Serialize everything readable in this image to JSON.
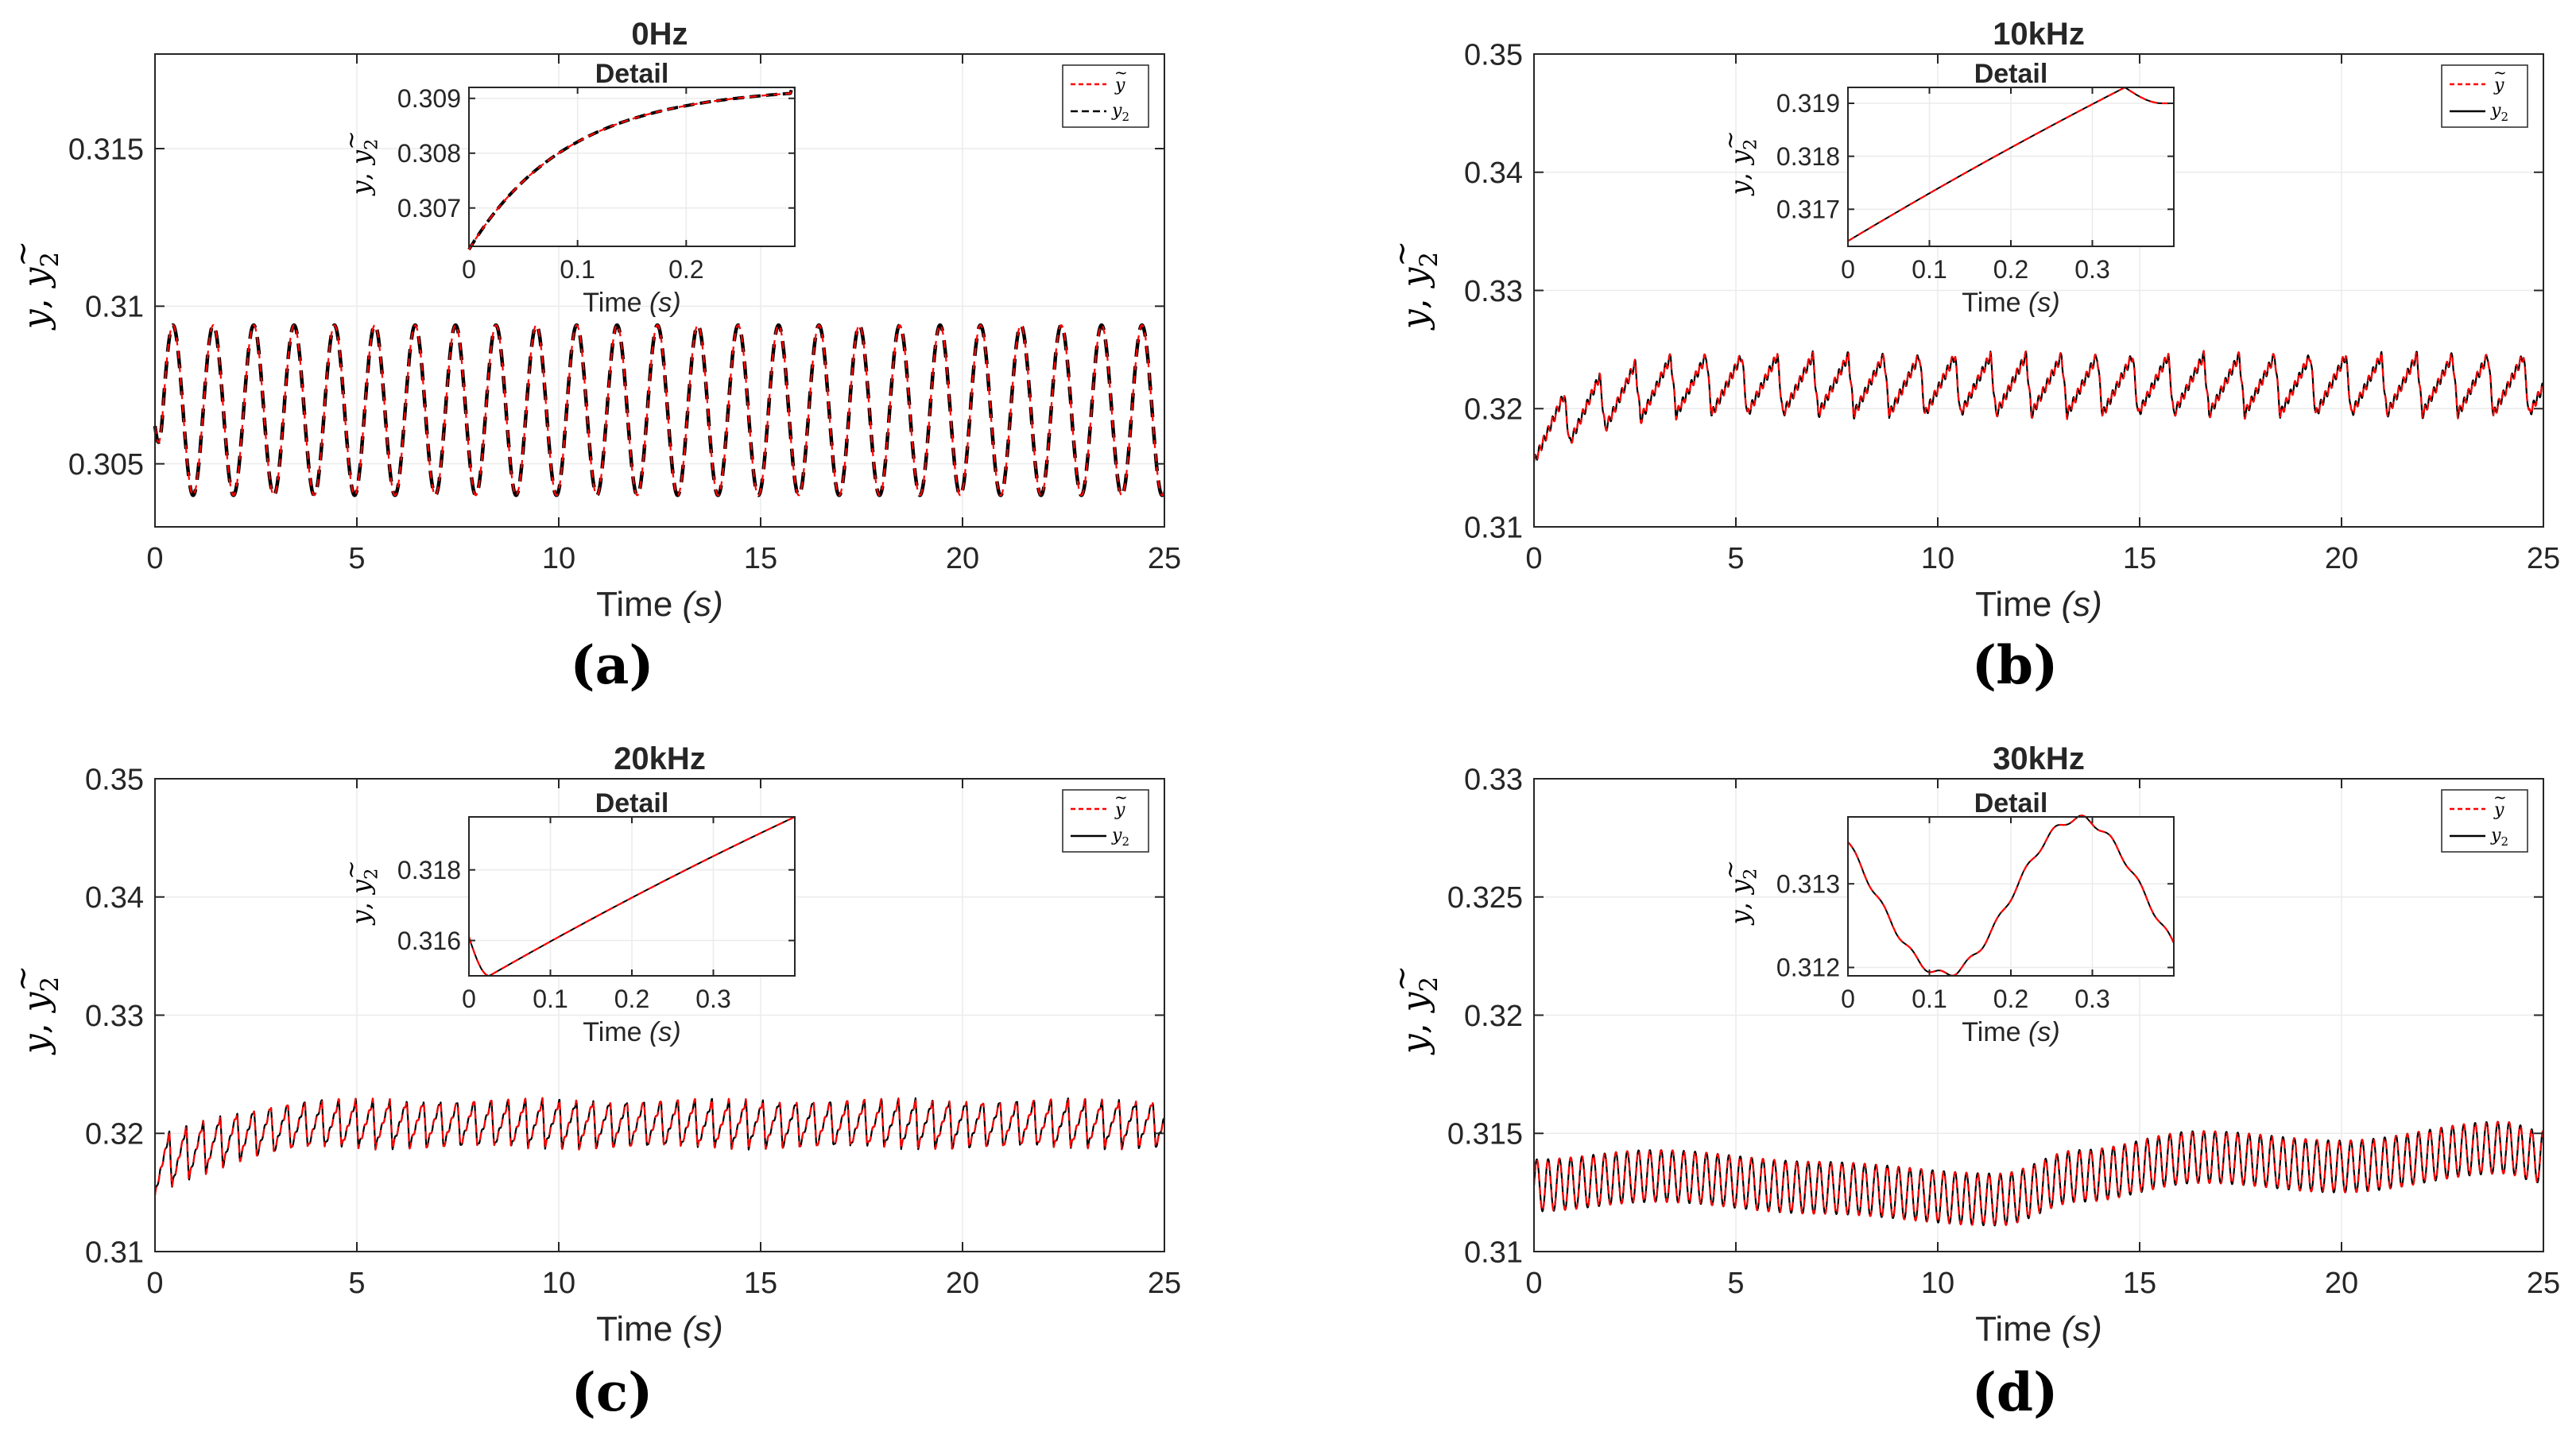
{
  "legend_labels": {
    "tilde": "~",
    "y_tilde": "y",
    "y2": "y",
    "y2_sub": "2"
  },
  "ylabel_text": {
    "tilde": "~",
    "y": "y",
    "comma": ",",
    "y2": "y",
    "sub": "2"
  },
  "xlabel_text": {
    "main": "Time ",
    "unit": "(s)"
  },
  "inset_title": "Detail",
  "colors": {
    "y_tilde": "#ff0000",
    "y2": "#000000",
    "axis": "#262626",
    "grid": "#ebebeb"
  },
  "chart_data": [
    {
      "id": "a",
      "type": "line",
      "title": "0Hz",
      "sublabel": "(a)",
      "xlabel": "Time (s)",
      "ylabel": "ỹ, y2",
      "xlim": [
        0,
        25
      ],
      "ylim": [
        0.303,
        0.318
      ],
      "xticks": [
        0,
        5,
        10,
        15,
        20,
        25
      ],
      "yticks": [
        0.305,
        0.31,
        0.315
      ],
      "ytick_labels": [
        "0.305",
        "0.31",
        "0.315"
      ],
      "grid": true,
      "legend": "top-right",
      "series": [
        {
          "name": "ỹ",
          "style": "dash",
          "color": "#ff0000"
        },
        {
          "name": "y2",
          "style": "dash",
          "color": "#000000"
        }
      ],
      "signal": {
        "kind": "sine",
        "period": 1.0,
        "mean": 0.3067,
        "amplitude": 0.0027,
        "start": 0.3062,
        "phase_shift": 0.05
      },
      "inset": {
        "title": "Detail",
        "xlabel": "Time (s)",
        "ylabel": "ỹ, y2",
        "xlim": [
          0,
          0.3
        ],
        "ylim": [
          0.3063,
          0.3092
        ],
        "xticks": [
          0,
          0.1,
          0.2
        ],
        "xtick_labels": [
          "0",
          "0.1",
          "0.2"
        ],
        "yticks": [
          0.307,
          0.308,
          0.309
        ],
        "ytick_labels": [
          "0.307",
          "0.308",
          "0.309"
        ],
        "curve": {
          "kind": "saturating",
          "y0": 0.3063,
          "y1": 0.3092,
          "tau": 0.09
        }
      }
    },
    {
      "id": "b",
      "type": "line",
      "title": "10kHz",
      "sublabel": "(b)",
      "xlabel": "Time (s)",
      "ylabel": "ỹ, y2",
      "xlim": [
        0,
        25
      ],
      "ylim": [
        0.31,
        0.35
      ],
      "xticks": [
        0,
        5,
        10,
        15,
        20,
        25
      ],
      "yticks": [
        0.31,
        0.32,
        0.33,
        0.34,
        0.35
      ],
      "ytick_labels": [
        "0.31",
        "0.32",
        "0.33",
        "0.34",
        "0.35"
      ],
      "grid": true,
      "legend": "top-right",
      "series": [
        {
          "name": "ỹ",
          "style": "dash",
          "color": "#ff0000"
        },
        {
          "name": "y2",
          "style": "solid",
          "color": "#000000"
        }
      ],
      "signal": {
        "kind": "sawtooth",
        "period": 0.88,
        "low_start": 0.3155,
        "low_end": 0.3195,
        "high_start": 0.3195,
        "high_end": 0.3245,
        "settle": 4.0,
        "ripple": 0.0008
      },
      "inset": {
        "title": "Detail",
        "xlabel": "Time (s)",
        "ylabel": "ỹ, y2",
        "xlim": [
          0,
          0.4
        ],
        "ylim": [
          0.3163,
          0.3193
        ],
        "xticks": [
          0,
          0.1,
          0.2,
          0.3
        ],
        "xtick_labels": [
          "0",
          "0.1",
          "0.2",
          "0.3"
        ],
        "yticks": [
          0.317,
          0.318,
          0.319
        ],
        "ytick_labels": [
          "0.317",
          "0.318",
          "0.319"
        ],
        "curve": {
          "kind": "rise_peak",
          "y0": 0.3164,
          "peak": 0.3193,
          "t_peak": 0.34,
          "y_end": 0.319
        }
      }
    },
    {
      "id": "c",
      "type": "line",
      "title": "20kHz",
      "sublabel": "(c)",
      "xlabel": "Time (s)",
      "ylabel": "ỹ, y2",
      "xlim": [
        0,
        25
      ],
      "ylim": [
        0.31,
        0.35
      ],
      "xticks": [
        0,
        5,
        10,
        15,
        20,
        25
      ],
      "yticks": [
        0.31,
        0.32,
        0.33,
        0.34,
        0.35
      ],
      "ytick_labels": [
        "0.31",
        "0.32",
        "0.33",
        "0.34",
        "0.35"
      ],
      "grid": true,
      "legend": "top-right",
      "series": [
        {
          "name": "ỹ",
          "style": "dash",
          "color": "#ff0000"
        },
        {
          "name": "y2",
          "style": "solid",
          "color": "#000000"
        }
      ],
      "signal": {
        "kind": "sawtooth",
        "period": 0.42,
        "low_start": 0.3148,
        "low_end": 0.3188,
        "high_start": 0.3195,
        "high_end": 0.3228,
        "settle": 4.5,
        "ripple": 0.0004
      },
      "inset": {
        "title": "Detail",
        "xlabel": "Time (s)",
        "ylabel": "ỹ, y2",
        "xlim": [
          0,
          0.4
        ],
        "ylim": [
          0.315,
          0.3195
        ],
        "xticks": [
          0,
          0.1,
          0.2,
          0.3
        ],
        "xtick_labels": [
          "0",
          "0.1",
          "0.2",
          "0.3"
        ],
        "yticks": [
          0.316,
          0.318
        ],
        "ytick_labels": [
          "0.316",
          "0.318"
        ],
        "curve": {
          "kind": "dip_rise",
          "y_start": 0.3161,
          "y_min": 0.315,
          "t_min": 0.025,
          "y_end": 0.3195
        }
      }
    },
    {
      "id": "d",
      "type": "line",
      "title": "30kHz",
      "sublabel": "(d)",
      "xlabel": "Time (s)",
      "ylabel": "ỹ, y2",
      "xlim": [
        0,
        25
      ],
      "ylim": [
        0.31,
        0.33
      ],
      "xticks": [
        0,
        5,
        10,
        15,
        20,
        25
      ],
      "yticks": [
        0.31,
        0.315,
        0.32,
        0.325,
        0.33
      ],
      "ytick_labels": [
        "0.31",
        "0.315",
        "0.32",
        "0.325",
        "0.33"
      ],
      "grid": true,
      "legend": "top-right",
      "series": [
        {
          "name": "ỹ",
          "style": "dash",
          "color": "#ff0000"
        },
        {
          "name": "y2",
          "style": "solid",
          "color": "#000000"
        }
      ],
      "signal": {
        "kind": "modulated",
        "period": 0.28,
        "amplitude": 0.0011,
        "envelope": [
          [
            0,
            0.3128
          ],
          [
            3,
            0.3132
          ],
          [
            7,
            0.3127
          ],
          [
            11.5,
            0.3122
          ],
          [
            13.5,
            0.3132
          ],
          [
            16.5,
            0.314
          ],
          [
            20,
            0.3136
          ],
          [
            24,
            0.3144
          ],
          [
            25,
            0.314
          ]
        ]
      },
      "inset": {
        "title": "Detail",
        "xlabel": "Time (s)",
        "ylabel": "ỹ, y2",
        "xlim": [
          0,
          0.4
        ],
        "ylim": [
          0.3119,
          0.3138
        ],
        "xticks": [
          0,
          0.1,
          0.2,
          0.3
        ],
        "xtick_labels": [
          "0",
          "0.1",
          "0.2",
          "0.3"
        ],
        "yticks": [
          0.312,
          0.313
        ],
        "ytick_labels": [
          "0.312",
          "0.313"
        ],
        "curve": {
          "kind": "cosine_wave",
          "y_mid": 0.31285,
          "amp": 0.00093,
          "t_min": 0.118,
          "half_period": 0.165,
          "y_start": 0.3135
        }
      }
    }
  ]
}
